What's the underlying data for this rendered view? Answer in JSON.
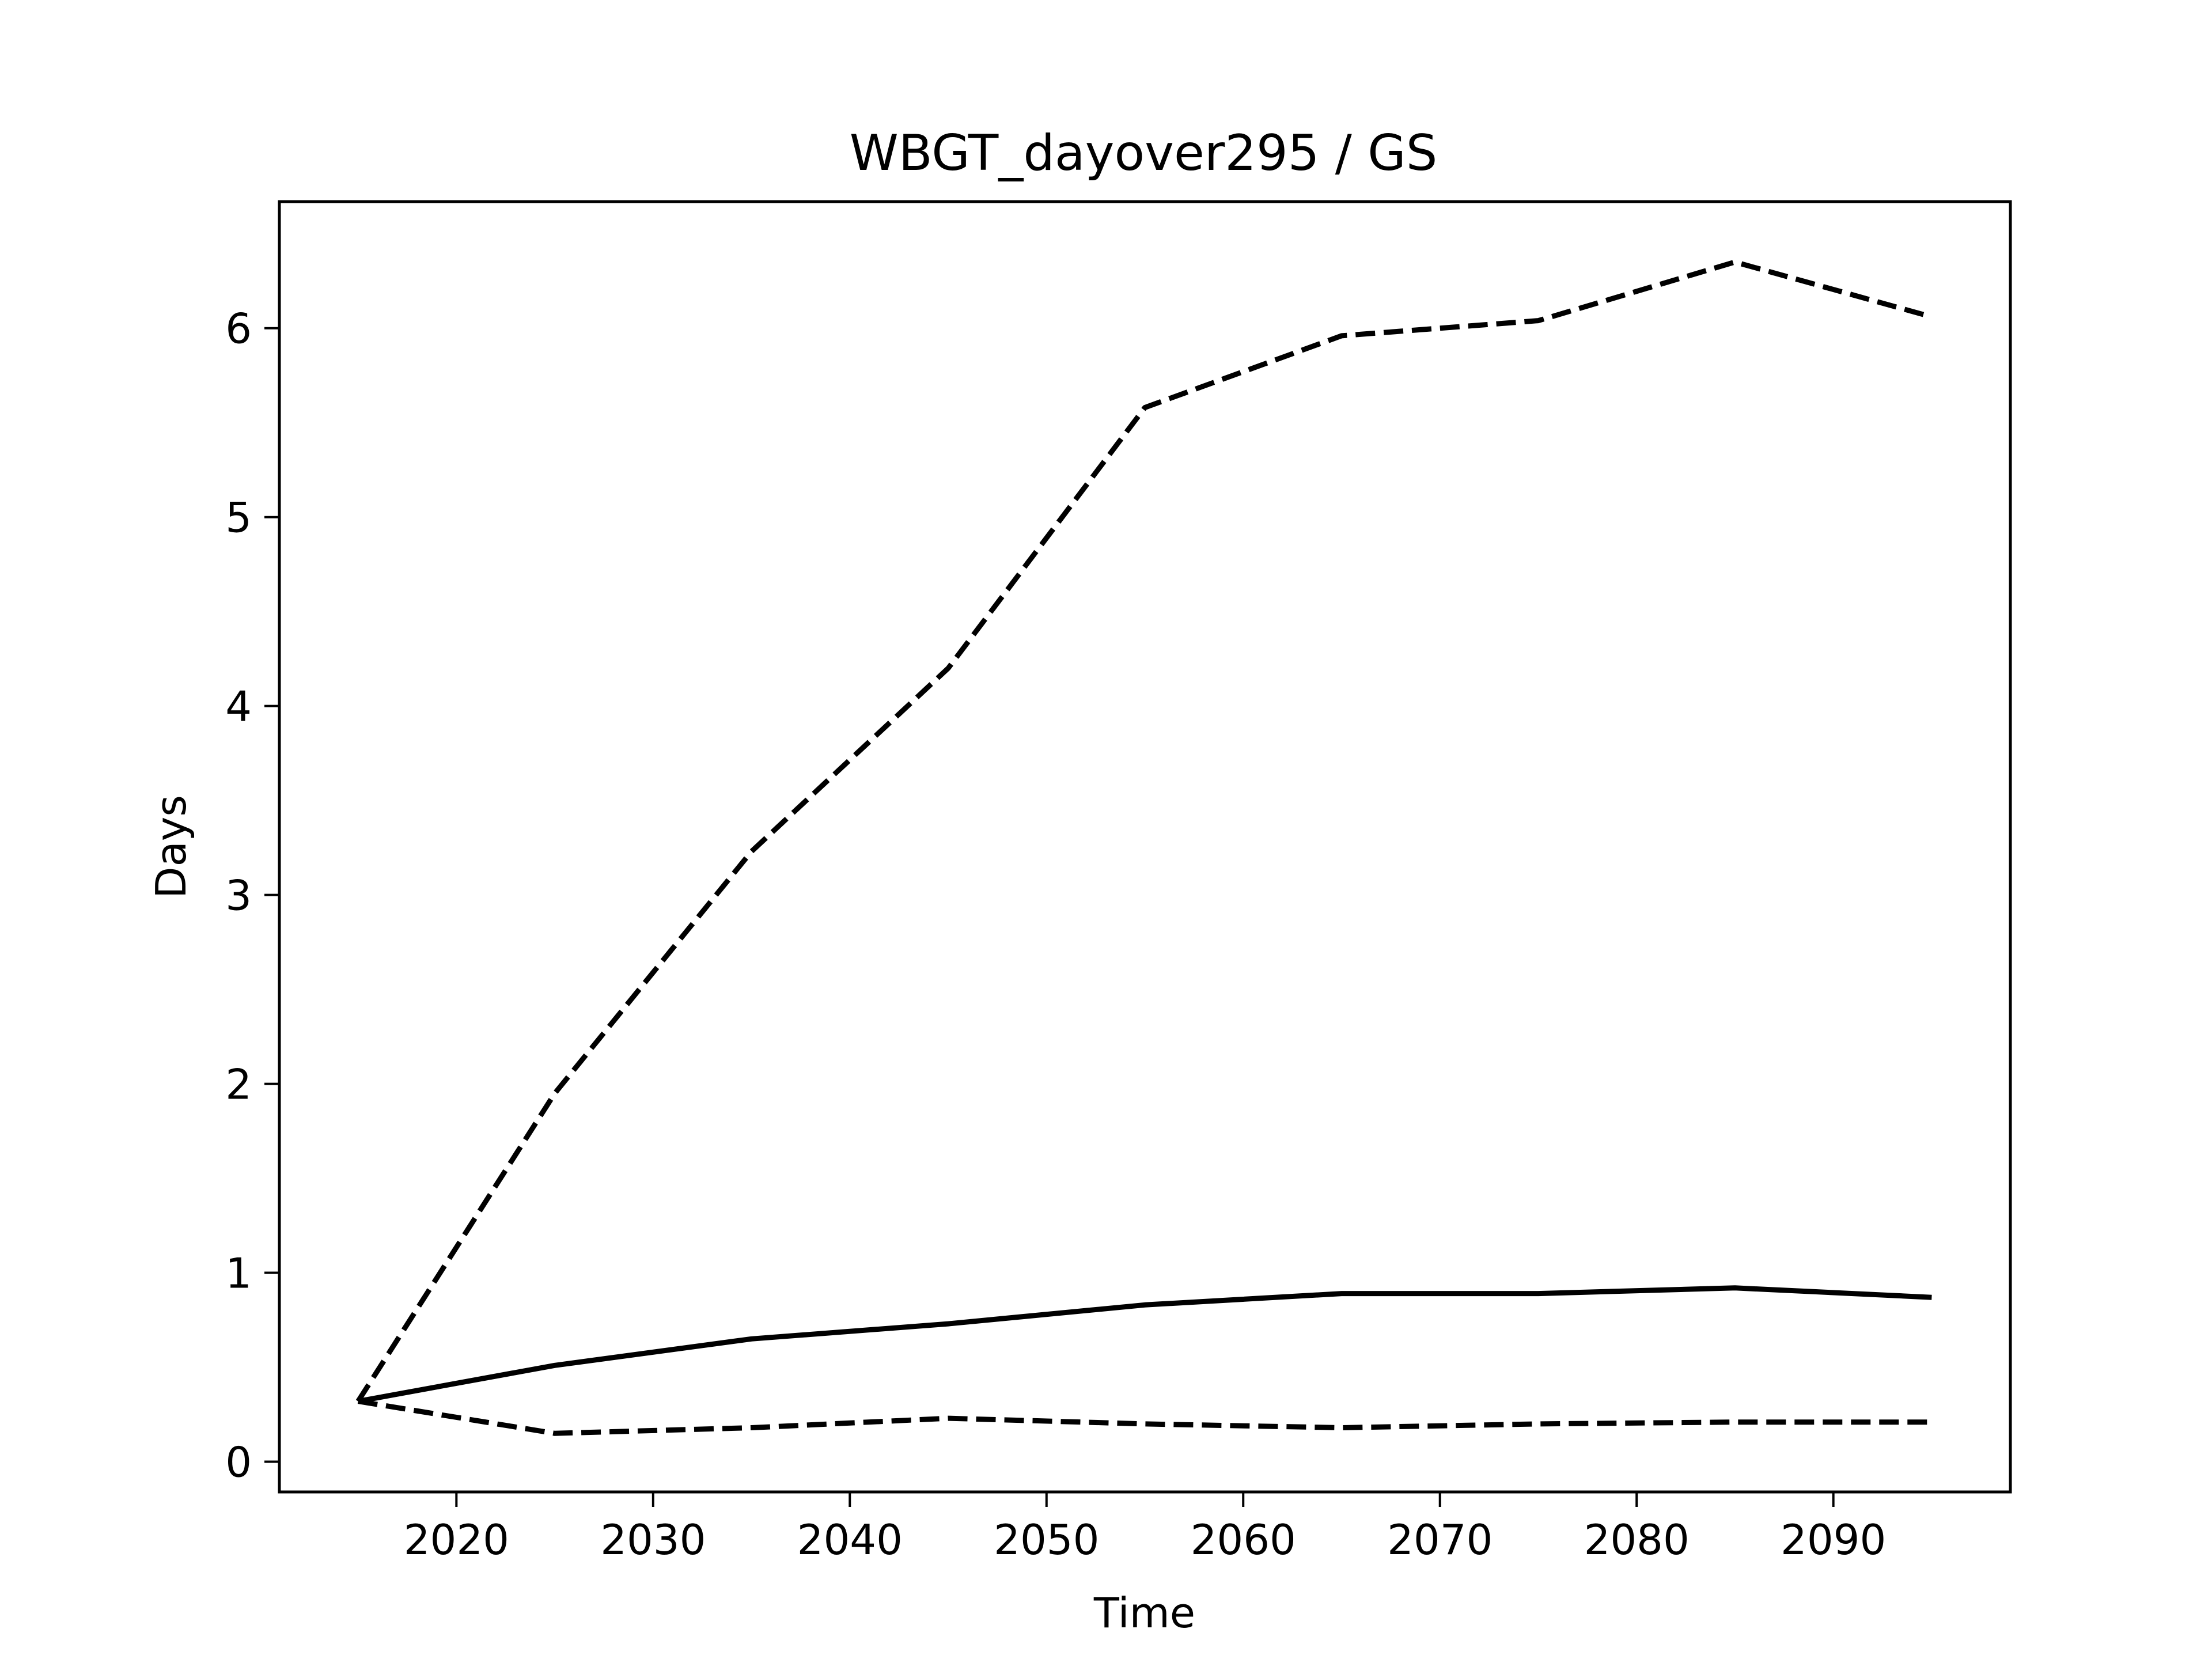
{
  "chart_data": {
    "type": "line",
    "title": "WBGT_dayover295 / GS",
    "xlabel": "Time",
    "ylabel": "Days",
    "xlim": [
      2011,
      2099
    ],
    "ylim": [
      -0.16,
      6.67
    ],
    "xticks": [
      2020,
      2030,
      2040,
      2050,
      2060,
      2070,
      2080,
      2090
    ],
    "yticks": [
      0,
      1,
      2,
      3,
      4,
      5,
      6
    ],
    "grid": false,
    "legend": "none",
    "x": [
      2015,
      2025,
      2035,
      2045,
      2055,
      2065,
      2075,
      2085,
      2095
    ],
    "series": [
      {
        "style": "dashed",
        "color": "#000000",
        "values": [
          0.32,
          1.95,
          3.23,
          4.2,
          5.58,
          5.96,
          6.04,
          6.35,
          6.06
        ]
      },
      {
        "style": "solid",
        "color": "#000000",
        "values": [
          0.32,
          0.51,
          0.65,
          0.73,
          0.83,
          0.89,
          0.89,
          0.92,
          0.87
        ]
      },
      {
        "style": "dashed",
        "color": "#000000",
        "values": [
          0.32,
          0.15,
          0.18,
          0.23,
          0.2,
          0.18,
          0.2,
          0.21,
          0.21
        ]
      }
    ]
  }
}
